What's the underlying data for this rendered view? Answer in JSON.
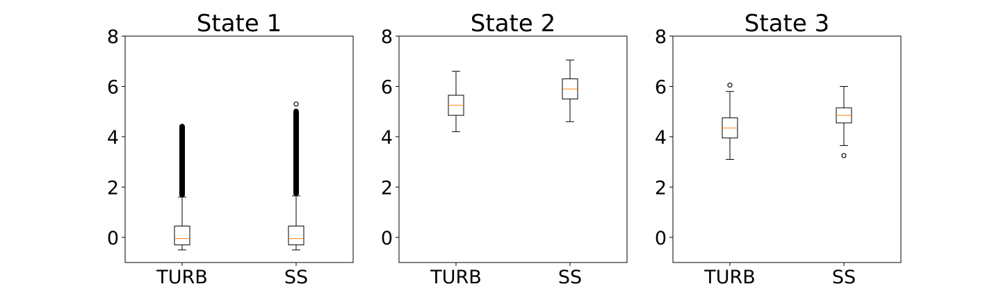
{
  "chart_data": [
    {
      "type": "box",
      "title": "State 1",
      "categories": [
        "TURB",
        "SS"
      ],
      "ylim": [
        -1,
        8
      ],
      "yticks": [
        "0",
        "2",
        "4",
        "6",
        "8"
      ],
      "boxes": [
        {
          "category": "TURB",
          "whislo": -0.5,
          "q1": -0.3,
          "median": -0.05,
          "q3": 0.45,
          "whishi": 1.6,
          "fliers": [
            1.6,
            4.5
          ],
          "dense_fliers": true
        },
        {
          "category": "SS",
          "whislo": -0.5,
          "q1": -0.3,
          "median": -0.05,
          "q3": 0.45,
          "whishi": 1.65,
          "fliers": [
            1.65,
            5.1,
            5.3
          ],
          "dense_fliers": true
        }
      ]
    },
    {
      "type": "box",
      "title": "State 2",
      "categories": [
        "TURB",
        "SS"
      ],
      "ylim": [
        -1,
        8
      ],
      "yticks": [
        "0",
        "2",
        "4",
        "6",
        "8"
      ],
      "boxes": [
        {
          "category": "TURB",
          "whislo": 4.2,
          "q1": 4.85,
          "median": 5.25,
          "q3": 5.65,
          "whishi": 6.6,
          "fliers": []
        },
        {
          "category": "SS",
          "whislo": 4.6,
          "q1": 5.5,
          "median": 5.9,
          "q3": 6.3,
          "whishi": 7.05,
          "fliers": []
        }
      ]
    },
    {
      "type": "box",
      "title": "State 3",
      "categories": [
        "TURB",
        "SS"
      ],
      "ylim": [
        -1,
        8
      ],
      "yticks": [
        "0",
        "2",
        "4",
        "6",
        "8"
      ],
      "boxes": [
        {
          "category": "TURB",
          "whislo": 3.1,
          "q1": 3.95,
          "median": 4.35,
          "q3": 4.75,
          "whishi": 5.8,
          "fliers": [
            6.05
          ]
        },
        {
          "category": "SS",
          "whislo": 3.65,
          "q1": 4.55,
          "median": 4.85,
          "q3": 5.15,
          "whishi": 6.0,
          "fliers": [
            3.25
          ]
        }
      ]
    }
  ],
  "style": {
    "box_color": "#000000",
    "median_color": "#ff7f0e"
  }
}
